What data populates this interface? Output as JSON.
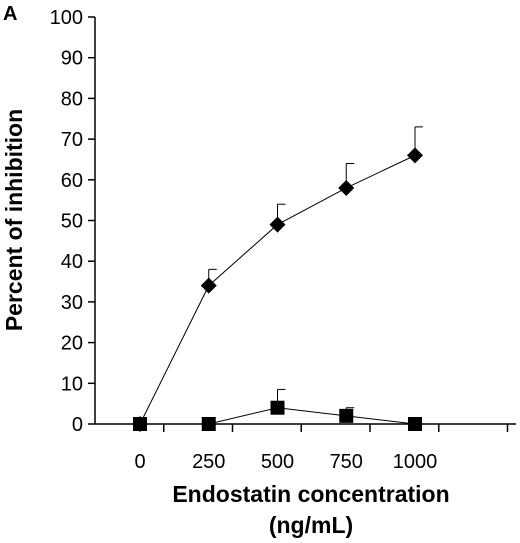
{
  "chart_data": {
    "type": "line",
    "panel_label": "A",
    "title": "",
    "xlabel_line1": "Endostatin concentration",
    "xlabel_line2": "(ng/mL)",
    "ylabel": "Percent of inhibition",
    "x": [
      0,
      250,
      500,
      750,
      1000
    ],
    "xticks": [
      "0",
      "250",
      "500",
      "750",
      "1000"
    ],
    "yticks": [
      "0",
      "10",
      "20",
      "30",
      "40",
      "50",
      "60",
      "70",
      "80",
      "90",
      "100"
    ],
    "ylim": [
      0,
      100
    ],
    "grid": false,
    "legend": "none",
    "series": [
      {
        "marker": "diamond",
        "values": [
          0,
          34,
          49,
          58,
          66
        ],
        "error_upper": [
          0,
          4,
          5,
          6,
          7
        ]
      },
      {
        "marker": "square",
        "values": [
          0,
          0,
          4,
          2,
          0
        ],
        "error_upper": [
          0,
          0,
          4.5,
          2,
          0
        ]
      }
    ]
  }
}
